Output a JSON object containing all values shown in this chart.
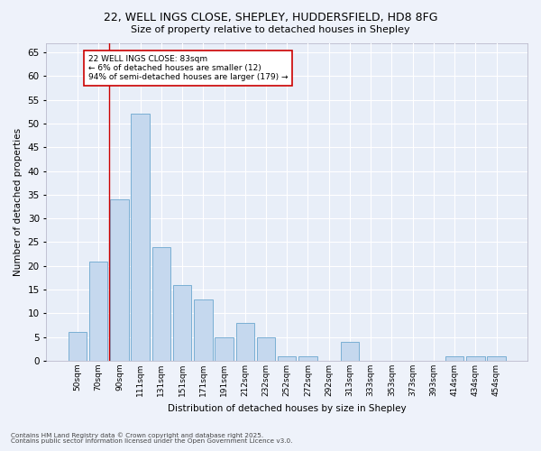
{
  "title_line1": "22, WELL INGS CLOSE, SHEPLEY, HUDDERSFIELD, HD8 8FG",
  "title_line2": "Size of property relative to detached houses in Shepley",
  "xlabel": "Distribution of detached houses by size in Shepley",
  "ylabel": "Number of detached properties",
  "categories": [
    "50sqm",
    "70sqm",
    "90sqm",
    "111sqm",
    "131sqm",
    "151sqm",
    "171sqm",
    "191sqm",
    "212sqm",
    "232sqm",
    "252sqm",
    "272sqm",
    "292sqm",
    "313sqm",
    "333sqm",
    "353sqm",
    "373sqm",
    "393sqm",
    "414sqm",
    "434sqm",
    "454sqm"
  ],
  "values": [
    6,
    21,
    34,
    52,
    24,
    16,
    13,
    5,
    8,
    5,
    1,
    1,
    0,
    4,
    0,
    0,
    0,
    0,
    1,
    1,
    1
  ],
  "bar_color": "#c5d8ee",
  "bar_edge_color": "#7aafd4",
  "bar_edge_width": 0.7,
  "vline_x_index": 1.5,
  "vline_color": "#cc0000",
  "annotation_text": "22 WELL INGS CLOSE: 83sqm\n← 6% of detached houses are smaller (12)\n94% of semi-detached houses are larger (179) →",
  "annotation_box_color": "#cc0000",
  "ylim": [
    0,
    67
  ],
  "yticks": [
    0,
    5,
    10,
    15,
    20,
    25,
    30,
    35,
    40,
    45,
    50,
    55,
    60,
    65
  ],
  "bg_color": "#e8eef8",
  "grid_color": "#ffffff",
  "footer_text": "Contains HM Land Registry data © Crown copyright and database right 2025.\nContains public sector information licensed under the Open Government Licence v3.0.",
  "figsize": [
    6.0,
    5.0
  ],
  "dpi": 100
}
